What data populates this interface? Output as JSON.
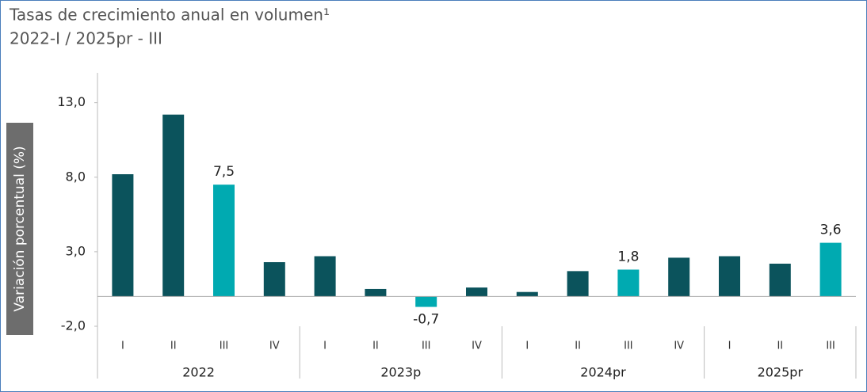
{
  "chart_data": {
    "type": "bar",
    "title": "Tasas de crecimiento anual en volumen¹",
    "subtitle": "2022-I / 2025pr - III",
    "y_label": "Variación porcentual (%)",
    "groups": [
      {
        "name": "2022",
        "categories": [
          "I",
          "II",
          "III",
          "IV"
        ]
      },
      {
        "name": "2023p",
        "categories": [
          "I",
          "II",
          "III",
          "IV"
        ]
      },
      {
        "name": "2024pr",
        "categories": [
          "I",
          "II",
          "III",
          "IV"
        ]
      },
      {
        "name": "2025pr",
        "categories": [
          "I",
          "II",
          "III"
        ]
      }
    ],
    "values": [
      8.2,
      12.2,
      7.5,
      2.3,
      2.7,
      0.5,
      -0.7,
      0.6,
      0.3,
      1.7,
      1.8,
      2.6,
      2.7,
      2.2,
      3.6
    ],
    "value_labels": [
      null,
      null,
      "7,5",
      null,
      null,
      null,
      "-0,7",
      null,
      null,
      null,
      "1,8",
      null,
      null,
      null,
      "3,6"
    ],
    "colors": [
      "#0b535c",
      "#0b535c",
      "#00aab1",
      "#0b535c",
      "#0b535c",
      "#0b535c",
      "#00aab1",
      "#0b535c",
      "#0b535c",
      "#0b535c",
      "#00aab1",
      "#0b535c",
      "#0b535c",
      "#0b535c",
      "#00aab1"
    ],
    "ylim": [
      -2,
      15
    ],
    "yticks": [
      {
        "value": -2,
        "label": "-2,0"
      },
      {
        "value": 3,
        "label": "3,0"
      },
      {
        "value": 8,
        "label": "8,0"
      },
      {
        "value": 13,
        "label": "13,0"
      }
    ]
  }
}
